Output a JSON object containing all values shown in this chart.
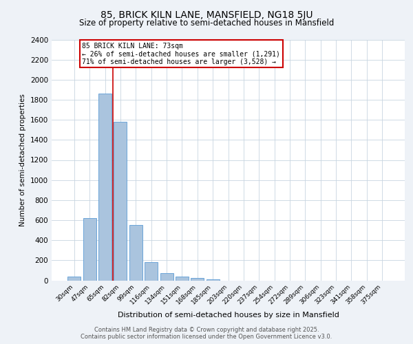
{
  "title_line1": "85, BRICK KILN LANE, MANSFIELD, NG18 5JU",
  "title_line2": "Size of property relative to semi-detached houses in Mansfield",
  "xlabel": "Distribution of semi-detached houses by size in Mansfield",
  "ylabel": "Number of semi-detached properties",
  "categories": [
    "30sqm",
    "47sqm",
    "65sqm",
    "82sqm",
    "99sqm",
    "116sqm",
    "134sqm",
    "151sqm",
    "168sqm",
    "185sqm",
    "203sqm",
    "220sqm",
    "237sqm",
    "254sqm",
    "272sqm",
    "289sqm",
    "306sqm",
    "323sqm",
    "341sqm",
    "358sqm",
    "375sqm"
  ],
  "values": [
    35,
    620,
    1860,
    1580,
    550,
    185,
    70,
    40,
    22,
    10,
    0,
    0,
    0,
    0,
    0,
    0,
    0,
    0,
    0,
    0,
    0
  ],
  "bar_color": "#aac4de",
  "bar_edge_color": "#5b9bd5",
  "property_label": "85 BRICK KILN LANE: 73sqm",
  "annotation_line1": "← 26% of semi-detached houses are smaller (1,291)",
  "annotation_line2": "71% of semi-detached houses are larger (3,528) →",
  "redline_index": 2,
  "ylim": [
    0,
    2400
  ],
  "yticks": [
    0,
    200,
    400,
    600,
    800,
    1000,
    1200,
    1400,
    1600,
    1800,
    2000,
    2200,
    2400
  ],
  "footer_line1": "Contains HM Land Registry data © Crown copyright and database right 2025.",
  "footer_line2": "Contains public sector information licensed under the Open Government Licence v3.0.",
  "background_color": "#eef2f7",
  "plot_bg_color": "#ffffff",
  "grid_color": "#c8d4e0",
  "annotation_box_color": "#ffffff",
  "annotation_border_color": "#cc0000",
  "redline_color": "#cc0000"
}
